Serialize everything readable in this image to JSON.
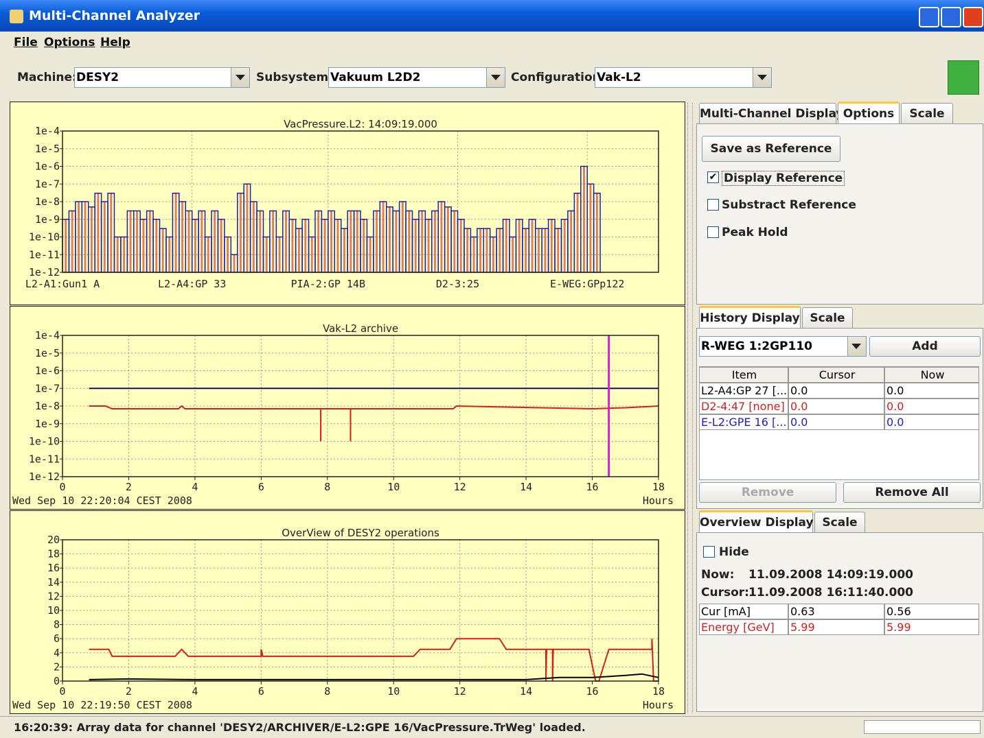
{
  "window": {
    "title": "Multi-Channel Analyzer"
  },
  "menu": [
    "File",
    "Options",
    "Help"
  ],
  "toolbar": {
    "machine_label": "Machine:",
    "machine": "DESY2",
    "subsystem_label": "Subsystem:",
    "subsystem": "Vakuum L2D2",
    "configuration_label": "Configuration:",
    "configuration": "Vak-L2"
  },
  "charts": [
    {
      "type": "bar",
      "title": "VacPressure.L2: 14:09:19.000",
      "log_y": true,
      "grid": true,
      "ylim": [
        1e-12,
        0.0001
      ],
      "yticks": [
        {
          "value": 0.0001,
          "label": "1e-4"
        },
        {
          "value": 1e-05,
          "label": "1e-5"
        },
        {
          "value": 1e-06,
          "label": "1e-6"
        },
        {
          "value": 1e-07,
          "label": "1e-7"
        },
        {
          "value": 1e-08,
          "label": "1e-8"
        },
        {
          "value": 1e-09,
          "label": "1e-9"
        },
        {
          "value": 1e-10,
          "label": "1e-10"
        },
        {
          "value": 1e-11,
          "label": "1e-11"
        },
        {
          "value": 1e-12,
          "label": "1e-12"
        }
      ],
      "categories": [
        "L2-A1:Gun1 A",
        null,
        null,
        null,
        null,
        null,
        null,
        null,
        null,
        null,
        null,
        null,
        null,
        null,
        null,
        null,
        null,
        null,
        null,
        null,
        "L2-A4:GP 33",
        null,
        null,
        null,
        null,
        null,
        null,
        null,
        null,
        null,
        null,
        null,
        null,
        null,
        null,
        null,
        null,
        null,
        null,
        null,
        null,
        "PIA-2:GP 14B",
        null,
        null,
        null,
        null,
        null,
        null,
        null,
        null,
        null,
        null,
        null,
        null,
        null,
        null,
        null,
        null,
        null,
        null,
        null,
        "D2-3:25",
        null,
        null,
        null,
        null,
        null,
        null,
        null,
        null,
        null,
        null,
        null,
        null,
        null,
        null,
        null,
        null,
        null,
        null,
        null,
        "E-WEG:GPp122",
        null,
        null,
        null,
        null,
        null,
        null,
        null,
        null,
        null,
        null
      ],
      "values": [
        1e-09,
        3e-09,
        1e-08,
        1e-08,
        5e-09,
        3e-08,
        1e-08,
        3e-08,
        1e-10,
        1e-10,
        3e-09,
        3e-09,
        1e-09,
        3e-09,
        1e-09,
        3e-10,
        1e-10,
        3e-08,
        1e-08,
        3e-09,
        1e-09,
        3e-09,
        1e-10,
        3e-09,
        1e-09,
        1e-10,
        1e-11,
        3e-08,
        1e-07,
        1e-08,
        3e-09,
        1e-10,
        3e-09,
        1e-10,
        3e-09,
        1e-09,
        3e-10,
        1e-09,
        1e-10,
        3e-09,
        1e-09,
        3e-09,
        1e-09,
        3e-10,
        3e-09,
        3e-09,
        1e-09,
        1e-10,
        3e-09,
        1e-08,
        5e-09,
        3e-09,
        1e-08,
        3e-09,
        1e-09,
        3e-09,
        1e-09,
        3e-09,
        1e-08,
        5e-09,
        3e-09,
        1e-09,
        3e-10,
        1e-10,
        3e-10,
        3e-10,
        1e-10,
        3e-10,
        1e-09,
        1e-10,
        1e-09,
        3e-10,
        1e-09,
        3e-10,
        3e-10,
        1e-09,
        3e-10,
        1e-09,
        3e-09,
        3e-08,
        1e-06,
        1e-07,
        3e-08,
        null,
        null,
        null,
        null,
        null,
        null,
        null,
        null,
        null
      ],
      "bar_color": "#d04040",
      "outline_color": "#2020a0"
    },
    {
      "type": "line",
      "title": "Vak-L2 archive",
      "log_y": true,
      "grid": true,
      "xlim": [
        0,
        18
      ],
      "xticks": [
        0,
        2,
        4,
        6,
        8,
        10,
        12,
        14,
        16,
        18
      ],
      "xlabel": "Hours",
      "date": "Wed Sep 10 22:20:04 CEST 2008",
      "ylim": [
        1e-12,
        0.0001
      ],
      "yticks": [
        {
          "value": 0.0001,
          "label": "1e-4"
        },
        {
          "value": 1e-05,
          "label": "1e-5"
        },
        {
          "value": 1e-06,
          "label": "1e-6"
        },
        {
          "value": 1e-07,
          "label": "1e-7"
        },
        {
          "value": 1e-08,
          "label": "1e-8"
        },
        {
          "value": 1e-09,
          "label": "1e-9"
        },
        {
          "value": 1e-10,
          "label": "1e-10"
        },
        {
          "value": 1e-11,
          "label": "1e-11"
        },
        {
          "value": 1e-12,
          "label": "1e-12"
        }
      ],
      "series": [
        {
          "color": "#101060",
          "x": [
            0.8,
            18
          ],
          "values": [
            1e-07,
            1e-07
          ]
        },
        {
          "color": "#d02020",
          "x": [
            0.8,
            1.3,
            1.5,
            3.5,
            3.6,
            3.7,
            7.8,
            7.8,
            7.8,
            8.7,
            8.7,
            8.7,
            11.8,
            11.9,
            16,
            17,
            18
          ],
          "values": [
            1e-08,
            1e-08,
            7e-09,
            7e-09,
            1e-08,
            7e-09,
            7e-09,
            1e-10,
            7e-09,
            7e-09,
            1e-10,
            7e-09,
            7e-09,
            1e-08,
            7e-09,
            8e-09,
            1e-08
          ]
        }
      ],
      "cursor_x": 16.5,
      "cursor_color": "#d020d0"
    },
    {
      "type": "line",
      "title": "OverView of DESY2 operations",
      "log_y": false,
      "grid": true,
      "xlim": [
        0,
        18
      ],
      "xticks": [
        0,
        2,
        4,
        6,
        8,
        10,
        12,
        14,
        16,
        18
      ],
      "xlabel": "Hours",
      "date": "Wed Sep 10 22:19:50 CEST 2008",
      "ylim": [
        0,
        20
      ],
      "yticks": [
        0,
        2,
        4,
        6,
        8,
        10,
        12,
        14,
        16,
        18,
        20
      ],
      "series": [
        {
          "color": "#d02020",
          "x": [
            0.8,
            1.4,
            1.5,
            3.4,
            3.6,
            3.8,
            6.0,
            6.0,
            6.05,
            10.6,
            10.8,
            11.7,
            11.9,
            13.2,
            13.4,
            14.6,
            14.6,
            14.62,
            14.8,
            14.8,
            14.82,
            15.1,
            15.2,
            15.9,
            16.1,
            16.2,
            16.5,
            16.6,
            17.8,
            17.8,
            17.85,
            18
          ],
          "values": [
            4.5,
            4.5,
            3.5,
            3.5,
            4.5,
            3.5,
            3.5,
            4.5,
            3.5,
            3.5,
            4.5,
            4.5,
            6,
            6,
            4.5,
            4.5,
            0,
            4.5,
            4.5,
            0,
            4.5,
            4.5,
            4.5,
            4.5,
            0,
            0,
            4.5,
            4.5,
            4.5,
            6,
            0,
            0
          ]
        },
        {
          "color": "#000000",
          "x": [
            0.8,
            2,
            4,
            6,
            8,
            10,
            12,
            14,
            15,
            16,
            17,
            17.5,
            18
          ],
          "values": [
            0.2,
            0.3,
            0.2,
            0.2,
            0.2,
            0.2,
            0.2,
            0.2,
            0.5,
            0.5,
            0.8,
            1,
            0.5
          ]
        }
      ]
    }
  ],
  "multi_channel": {
    "tabs": [
      "Multi-Channel Display",
      "Options",
      "Scale"
    ],
    "save_button": "Save as Reference",
    "checkboxes": [
      {
        "label": "Display Reference",
        "checked": true
      },
      {
        "label": "Substract Reference",
        "checked": false
      },
      {
        "label": "Peak Hold",
        "checked": false
      }
    ]
  },
  "history": {
    "tabs": [
      "History Display",
      "Scale"
    ],
    "channel": "R-WEG 1:2GP110",
    "add_button": "Add",
    "columns": [
      "Item",
      "Cursor",
      "Now"
    ],
    "rows": [
      {
        "item": "L2-A4:GP 27 [...",
        "cursor": "0.0",
        "now": "0.0",
        "color": "#000000"
      },
      {
        "item": "D2-4:47 [none]",
        "cursor": "0.0",
        "now": "0.0",
        "color": "#d02020"
      },
      {
        "item": "E-L2:GPE 16 [...",
        "cursor": "0.0",
        "now": "0.0",
        "color": "#2020c0"
      }
    ],
    "remove_button": "Remove",
    "remove_all_button": "Remove All"
  },
  "overview": {
    "tabs": [
      "Overview Display",
      "Scale"
    ],
    "hide": "Hide",
    "now_label": "Now:",
    "now": "11.09.2008 14:09:19.000",
    "cursor_label": "Cursor:",
    "cursor": "11.09.2008 16:11:40.000",
    "rows": [
      {
        "item": "Cur [mA]",
        "cursor": "0.63",
        "now": "0.56",
        "color": "#000000"
      },
      {
        "item": "Energy [GeV]",
        "cursor": "5.99",
        "now": "5.99",
        "color": "#d02020"
      }
    ]
  },
  "status": "16:20:39: Array data for channel 'DESY2/ARCHIVER/E-L2:GPE 16/VacPressure.TrWeg' loaded."
}
